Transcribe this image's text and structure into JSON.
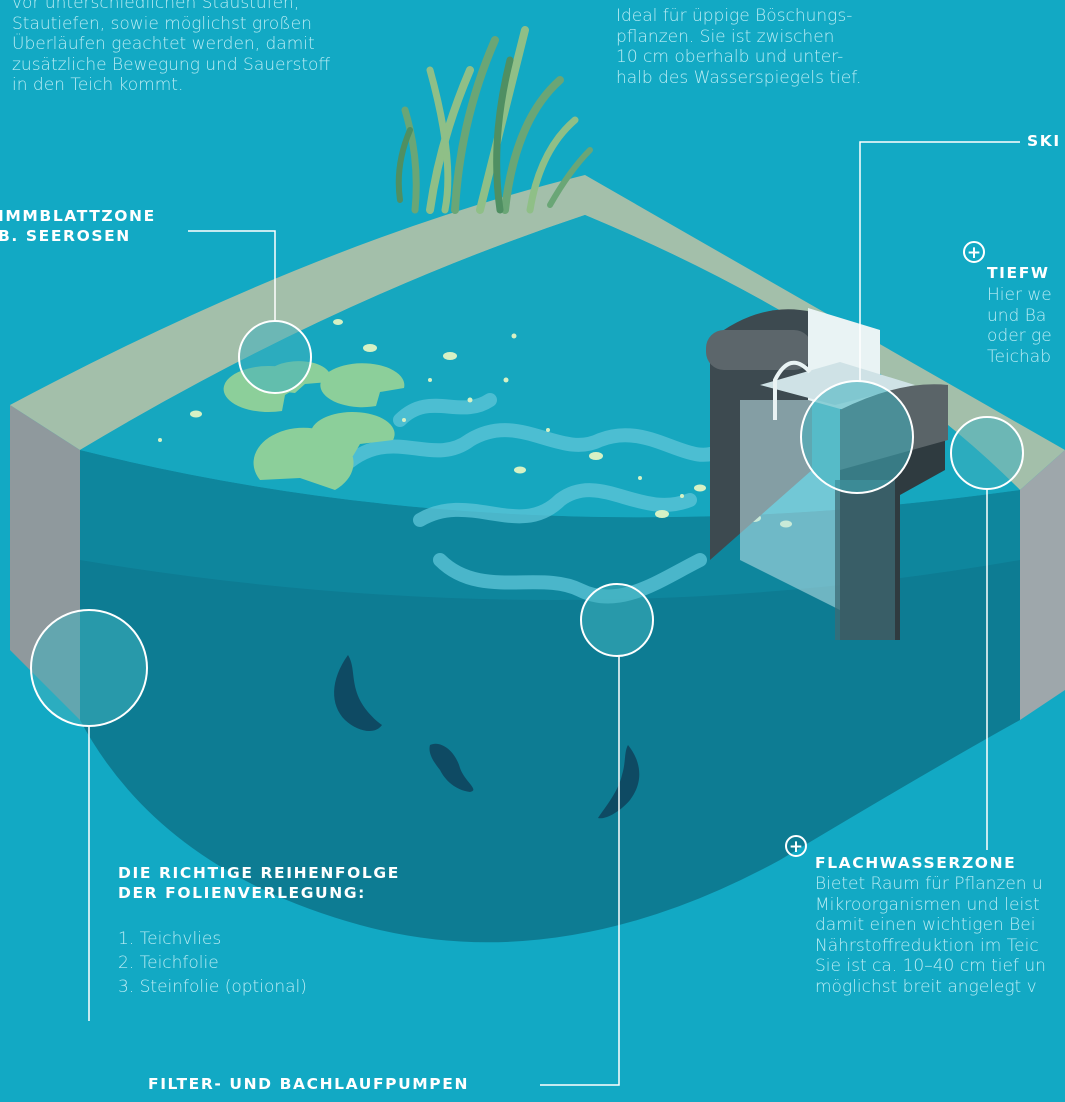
{
  "texts": {
    "intro_left": "vor unterschiedlichen Staustufen,\nStautiefen, sowie möglichst großen\nÜberläufen geachtet werden, damit\nzusätzliche Bewegung und Sauerstoff\nin den Teich kommt.",
    "intro_right": "Ideal für üppige Böschungs-\npflanzen. Sie ist zwischen\n10 cm oberhalb und unter-\nhalb des Wasserspiegels tief.",
    "schwimmblatt_heading": "IMMBLATTZONE\nB. SEEROSEN",
    "skimmer_heading": "SKI",
    "tiefwasser_heading": "TIEFW",
    "tiefwasser_text": "Hier we\nund Ba\noder ge\nTeichab",
    "flachwasser_heading": "FLACHWASSERZONE",
    "flachwasser_text": "Bietet Raum für Pflanzen u\nMikroorganismen und leist\ndamit einen wichtigen Bei\nNährstoffreduktion im Teic\nSie ist ca. 10–40 cm tief un\nmöglichst breit angelegt v",
    "folien_heading": "DIE RICHTIGE REIHENFOLGE\nDER FOLIENVERLEGUNG:",
    "folien_list": [
      "1. Teichvlies",
      "2. Teichfolie",
      "3. Steinfolie (optional)"
    ],
    "filter_heading": "FILTER- UND BACHLAUFPUMPEN",
    "plus_symbol": "+"
  },
  "colors": {
    "background": "#12a9c4",
    "water_surface": "#16a7bf",
    "water_side": "#0d7c93",
    "rim": "#a3bfaa",
    "wall": "#9ea7ab",
    "lily_pad": "#8ccf9a",
    "fish": "#0e4a63",
    "label_text": "#ffffff",
    "body_text": "#b9ecf4"
  }
}
